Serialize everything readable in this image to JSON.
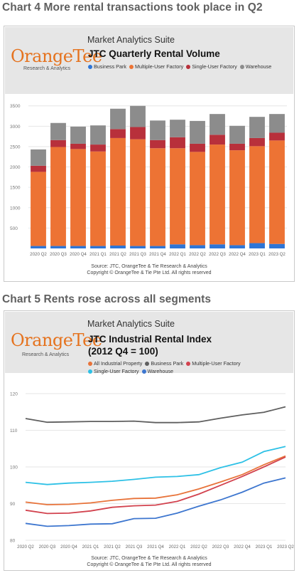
{
  "section1": {
    "title": "Chart 4 More rental transactions took place in Q2"
  },
  "section2": {
    "title": "Chart 5 Rents rose across all segments"
  },
  "brand": {
    "logo": "OrangeTee",
    "logo_sub": "Research & Analytics"
  },
  "panel1": {
    "suite": "Market Analytics Suite",
    "title": "JTC Quarterly Rental Volume",
    "source_line1": "Source: JTC, OrangeTee & Tie Research & Analytics",
    "source_line2": "Copyright © OrangeTee & Tie Pte Ltd. All rights reserved"
  },
  "panel2": {
    "suite": "Market Analytics Suite",
    "title_line1": "JTC Industrial Rental Index",
    "title_line2": "(2012 Q4 = 100)",
    "source_line1": "Source: JTC, OrangeTee & Tie Research & Analytics",
    "source_line2": "Copyright © OrangeTee & Tie Pte Ltd. All rights reserved"
  },
  "chart_data": [
    {
      "type": "bar",
      "stacked": true,
      "title": "JTC Quarterly Rental Volume",
      "legend_position": "top",
      "categories": [
        "2020 Q2",
        "2020 Q3",
        "2020 Q4",
        "2021 Q1",
        "2021 Q2",
        "2021 Q3",
        "2021 Q4",
        "2022 Q1",
        "2022 Q2",
        "2022 Q3",
        "2022 Q4",
        "2023 Q1",
        "2023 Q2"
      ],
      "ylim": [
        0,
        3600
      ],
      "yticks": [
        500,
        1000,
        1500,
        2000,
        2500,
        3000,
        3500
      ],
      "grid": true,
      "series": [
        {
          "name": "Business Park",
          "color": "#2e75d6",
          "values": [
            60,
            60,
            60,
            60,
            70,
            60,
            60,
            100,
            80,
            100,
            80,
            130,
            110
          ]
        },
        {
          "name": "Multiple-User Factory",
          "color": "#ed7334",
          "values": [
            1820,
            2430,
            2380,
            2320,
            2640,
            2620,
            2400,
            2360,
            2290,
            2450,
            2330,
            2380,
            2540
          ]
        },
        {
          "name": "Single-User Factory",
          "color": "#b8303b",
          "values": [
            150,
            170,
            130,
            170,
            220,
            300,
            200,
            270,
            200,
            240,
            160,
            200,
            190
          ]
        },
        {
          "name": "Warehouse",
          "color": "#8c8c8c",
          "values": [
            400,
            420,
            420,
            470,
            500,
            520,
            480,
            430,
            560,
            510,
            440,
            520,
            460
          ]
        }
      ]
    },
    {
      "type": "line",
      "title": "JTC Industrial Rental Index (2012 Q4 = 100)",
      "legend_position": "top",
      "x": [
        "2020 Q2",
        "2020 Q3",
        "2020 Q4",
        "2021 Q1",
        "2021 Q2",
        "2021 Q3",
        "2021 Q4",
        "2022 Q1",
        "2022 Q2",
        "2022 Q3",
        "2022 Q4",
        "2023 Q1",
        "2023 Q2"
      ],
      "ylim": [
        80,
        120
      ],
      "yticks": [
        80,
        90,
        100,
        110,
        120
      ],
      "grid": true,
      "series": [
        {
          "name": "All Industrial Property",
          "color": "#e8733a",
          "values": [
            90.4,
            89.7,
            89.8,
            90.2,
            90.9,
            91.4,
            91.5,
            92.4,
            94.0,
            95.9,
            97.9,
            100.6,
            103.0
          ]
        },
        {
          "name": "Business Park",
          "color": "#5f5f5f",
          "values": [
            113.2,
            112.2,
            112.3,
            112.4,
            112.4,
            112.5,
            112.1,
            112.1,
            112.3,
            113.3,
            114.2,
            114.9,
            116.4
          ]
        },
        {
          "name": "Multiple-User Factory",
          "color": "#d2424e",
          "values": [
            88.2,
            87.3,
            87.4,
            88.0,
            89.0,
            89.4,
            89.6,
            90.6,
            92.6,
            95.0,
            97.4,
            100.0,
            102.7
          ]
        },
        {
          "name": "Single-User Factory",
          "color": "#2ec1e6",
          "values": [
            95.8,
            95.2,
            95.6,
            95.8,
            96.1,
            96.6,
            97.2,
            97.4,
            97.9,
            99.8,
            101.3,
            104.2,
            105.6
          ]
        },
        {
          "name": "Warehouse",
          "color": "#3d76cf",
          "values": [
            84.6,
            83.8,
            84.0,
            84.4,
            84.5,
            85.9,
            86.0,
            87.4,
            89.3,
            91.0,
            93.1,
            95.6,
            97.0
          ]
        }
      ]
    }
  ]
}
